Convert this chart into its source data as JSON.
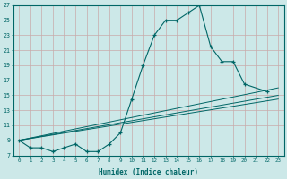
{
  "title": "",
  "xlabel": "Humidex (Indice chaleur)",
  "ylabel": "",
  "background_color": "#cce8e8",
  "grid_color": "#aacccc",
  "line_color": "#006666",
  "xlim": [
    -0.5,
    23.5
  ],
  "ylim": [
    7,
    27
  ],
  "yticks": [
    7,
    9,
    11,
    13,
    15,
    17,
    19,
    21,
    23,
    25,
    27
  ],
  "xticks": [
    0,
    1,
    2,
    3,
    4,
    5,
    6,
    7,
    8,
    9,
    10,
    11,
    12,
    13,
    14,
    15,
    16,
    17,
    18,
    19,
    20,
    21,
    22,
    23
  ],
  "xtick_labels": [
    "0",
    "1",
    "2",
    "3",
    "4",
    "5",
    "6",
    "7",
    "8",
    "9",
    "10",
    "11",
    "12",
    "13",
    "14",
    "15",
    "16",
    "17",
    "18",
    "19",
    "20",
    "21",
    "22",
    "23"
  ],
  "series_main": {
    "x": [
      0,
      1,
      2,
      3,
      4,
      5,
      6,
      7,
      8,
      9,
      10,
      11,
      12,
      13,
      14,
      15,
      16,
      17,
      18,
      19,
      20,
      22
    ],
    "y": [
      9,
      8,
      8,
      7.5,
      8,
      8.5,
      7.5,
      7.5,
      8.5,
      10,
      14.5,
      19,
      23,
      25,
      25,
      26,
      27,
      21.5,
      19.5,
      19.5,
      16.5,
      15.5
    ]
  },
  "series_line1": {
    "x": [
      0,
      23
    ],
    "y": [
      9,
      16
    ]
  },
  "series_line2": {
    "x": [
      0,
      23
    ],
    "y": [
      9,
      15
    ]
  },
  "series_line3": {
    "x": [
      0,
      23
    ],
    "y": [
      9,
      14.5
    ]
  }
}
